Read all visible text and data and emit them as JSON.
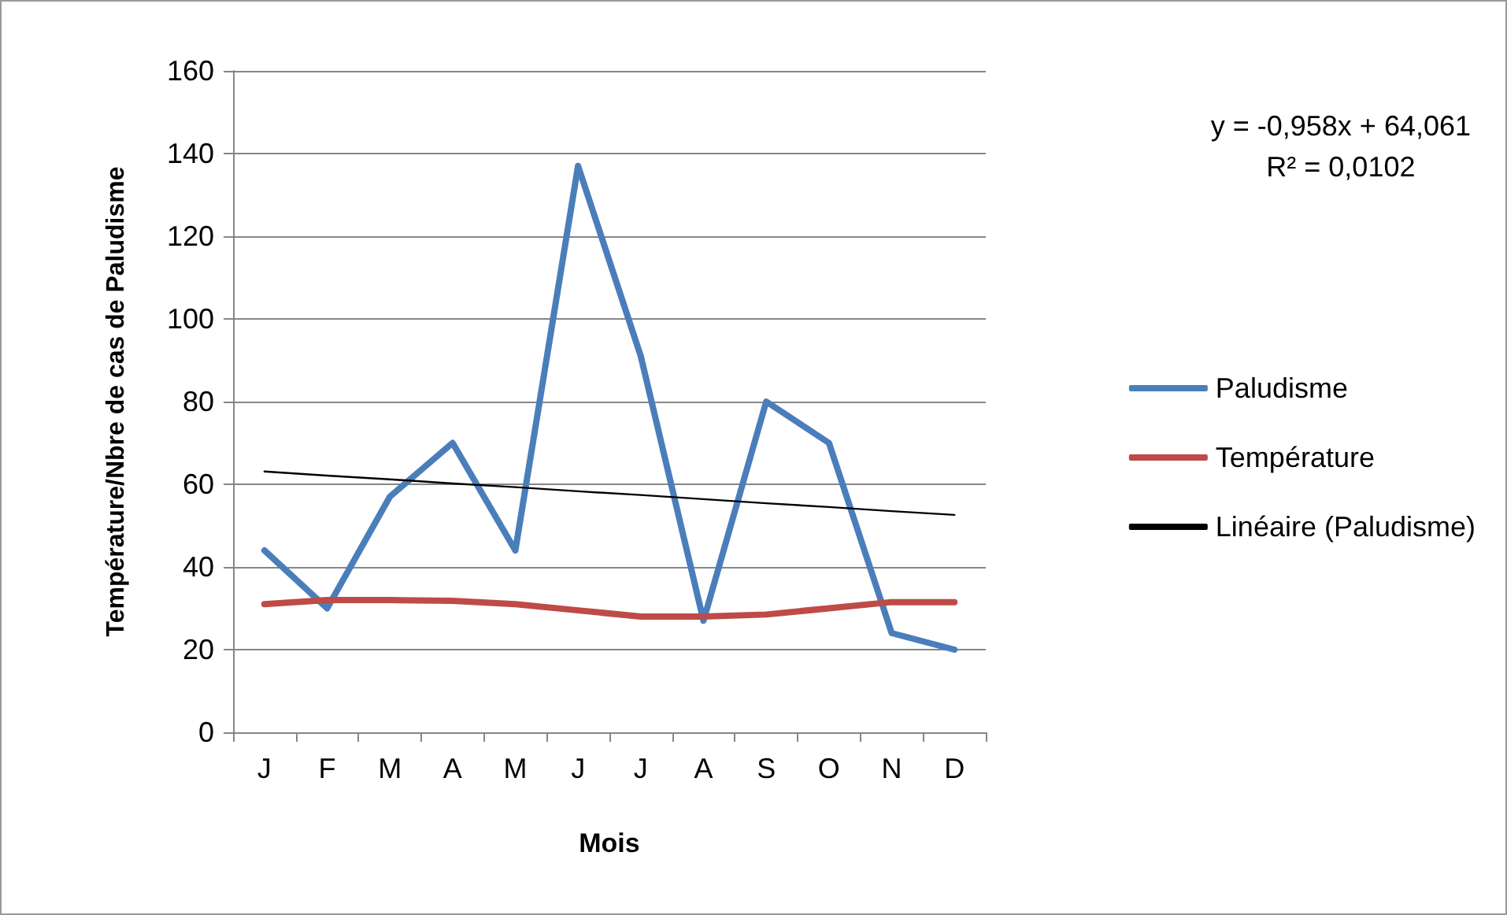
{
  "chart_data": {
    "type": "line",
    "xlabel": "Mois",
    "ylabel": "Température/Nbre de cas de Paludisme",
    "categories": [
      "J",
      "F",
      "M",
      "A",
      "M",
      "J",
      "J",
      "A",
      "S",
      "O",
      "N",
      "D"
    ],
    "series": [
      {
        "name": "Paludisme",
        "color": "#4a7ebb",
        "values": [
          44,
          30,
          57,
          70,
          44,
          137,
          91,
          27,
          80,
          70,
          24,
          20
        ]
      },
      {
        "name": "Température",
        "color": "#be4b48",
        "values": [
          31,
          32,
          32,
          31.8,
          31,
          29.5,
          28,
          28,
          28.5,
          30,
          31.5,
          31.5
        ]
      },
      {
        "name": "Linéaire (Paludisme)",
        "color": "#000000",
        "values": [
          63.1,
          62.1,
          61.2,
          60.2,
          59.3,
          58.3,
          57.4,
          56.4,
          55.4,
          54.5,
          53.5,
          52.6
        ]
      }
    ],
    "annotations": [
      "y = -0,958x + 64,061",
      "R² = 0,0102"
    ],
    "ylim": [
      0,
      160
    ],
    "yticks": [
      0,
      20,
      40,
      60,
      80,
      100,
      120,
      140,
      160
    ],
    "grid": "y",
    "legend": "right",
    "marker": "none"
  }
}
